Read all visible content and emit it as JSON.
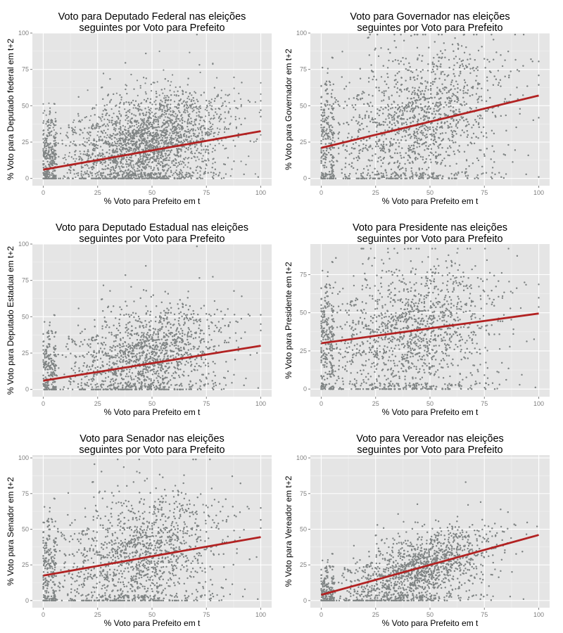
{
  "style": {
    "panel_bg": "#e5e5e5",
    "grid_major": "#ffffff",
    "grid_minor": "#f2f2f2",
    "point_color": "#808585",
    "line_color": "#b22222",
    "tick_text": "#7f7f7f",
    "title_text": "#000000"
  },
  "chart_data": [
    {
      "type": "scatter",
      "title": [
        "Voto para Deputado Federal nas eleições",
        "seguintes por Voto para Prefeito"
      ],
      "xlabel": "% Voto para Prefeito em t",
      "ylabel": "% Voto para Deputado federal em t+2",
      "xlim": [
        -5,
        105
      ],
      "ylim": [
        -5,
        100
      ],
      "xticks": [
        0,
        25,
        50,
        75,
        100
      ],
      "yticks": [
        0,
        25,
        50,
        75,
        100
      ],
      "grid": true,
      "trend_line": {
        "x": [
          0,
          100
        ],
        "y": [
          6,
          32.5
        ]
      },
      "point_cloud": {
        "n": 5500,
        "center": [
          48,
          25
        ],
        "sd": [
          18,
          16
        ],
        "slope": 0.28,
        "x_range": [
          0,
          100
        ],
        "y_range": [
          0,
          99
        ]
      }
    },
    {
      "type": "scatter",
      "title": [
        "Voto para Governador nas eleições",
        "seguintes por Voto para Prefeito"
      ],
      "xlabel": "% Voto para Prefeito em t",
      "ylabel": "% Voto para Governador em t+2",
      "xlim": [
        -5,
        105
      ],
      "ylim": [
        -5,
        100
      ],
      "xticks": [
        0,
        25,
        50,
        75,
        100
      ],
      "yticks": [
        0,
        25,
        50,
        75,
        100
      ],
      "grid": true,
      "trend_line": {
        "x": [
          0,
          100
        ],
        "y": [
          21,
          57
        ]
      },
      "point_cloud": {
        "n": 5500,
        "center": [
          45,
          40
        ],
        "sd": [
          20,
          24
        ],
        "slope": 0.36,
        "x_range": [
          0,
          100
        ],
        "y_range": [
          0,
          99
        ]
      }
    },
    {
      "type": "scatter",
      "title": [
        "Voto para Deputado Estadual nas eleições",
        "seguintes por Voto para Prefeito"
      ],
      "xlabel": "% Voto para Prefeito em t",
      "ylabel": "% Voto para Deputado Estadual em t+2",
      "xlim": [
        -5,
        105
      ],
      "ylim": [
        -5,
        100
      ],
      "xticks": [
        0,
        25,
        50,
        75,
        100
      ],
      "yticks": [
        0,
        25,
        50,
        75,
        100
      ],
      "grid": true,
      "trend_line": {
        "x": [
          0,
          100
        ],
        "y": [
          6,
          30
        ]
      },
      "point_cloud": {
        "n": 5500,
        "center": [
          48,
          24
        ],
        "sd": [
          18,
          16
        ],
        "slope": 0.26,
        "x_range": [
          0,
          100
        ],
        "y_range": [
          0,
          99
        ]
      }
    },
    {
      "type": "scatter",
      "title": [
        "Voto para Presidente nas eleições",
        "seguintes por Voto para Prefeito"
      ],
      "xlabel": "% Voto para Prefeito em t",
      "ylabel": "% Voto para Presidente em t+2",
      "xlim": [
        -5,
        105
      ],
      "ylim": [
        -5,
        95
      ],
      "xticks": [
        0,
        25,
        50,
        75,
        100
      ],
      "yticks": [
        0,
        25,
        50,
        75
      ],
      "grid": true,
      "trend_line": {
        "x": [
          0,
          100
        ],
        "y": [
          30,
          49.5
        ]
      },
      "point_cloud": {
        "n": 5500,
        "center": [
          42,
          38
        ],
        "sd": [
          20,
          22
        ],
        "slope": 0.2,
        "x_range": [
          0,
          100
        ],
        "y_range": [
          0,
          92
        ]
      }
    },
    {
      "type": "scatter",
      "title": [
        "Voto para Senador nas eleições",
        "seguintes por Voto para Prefeito"
      ],
      "xlabel": "% Voto para Prefeito em t",
      "ylabel": "% Voto para Senador em t+2",
      "xlim": [
        -5,
        105
      ],
      "ylim": [
        -5,
        102
      ],
      "xticks": [
        0,
        25,
        50,
        75,
        100
      ],
      "yticks": [
        0,
        25,
        50,
        75,
        100
      ],
      "grid": true,
      "trend_line": {
        "x": [
          0,
          100
        ],
        "y": [
          17.5,
          44.5
        ]
      },
      "point_cloud": {
        "n": 5500,
        "center": [
          45,
          32
        ],
        "sd": [
          19,
          21
        ],
        "slope": 0.27,
        "x_range": [
          0,
          100
        ],
        "y_range": [
          0,
          99
        ]
      }
    },
    {
      "type": "scatter",
      "title": [
        "Voto para Vereador nas eleições",
        "seguintes por Voto para Prefeito"
      ],
      "xlabel": "% Voto para Prefeito em t",
      "ylabel": "% Voto para Vereador em t+2",
      "xlim": [
        -5,
        105
      ],
      "ylim": [
        -5,
        102
      ],
      "xticks": [
        0,
        25,
        50,
        75,
        100
      ],
      "yticks": [
        0,
        25,
        50,
        75,
        100
      ],
      "grid": true,
      "trend_line": {
        "x": [
          0,
          100
        ],
        "y": [
          4,
          46
        ]
      },
      "point_cloud": {
        "n": 5500,
        "center": [
          45,
          22
        ],
        "sd": [
          17,
          12
        ],
        "slope": 0.45,
        "x_range": [
          0,
          100
        ],
        "y_range": [
          0,
          100
        ]
      }
    }
  ]
}
